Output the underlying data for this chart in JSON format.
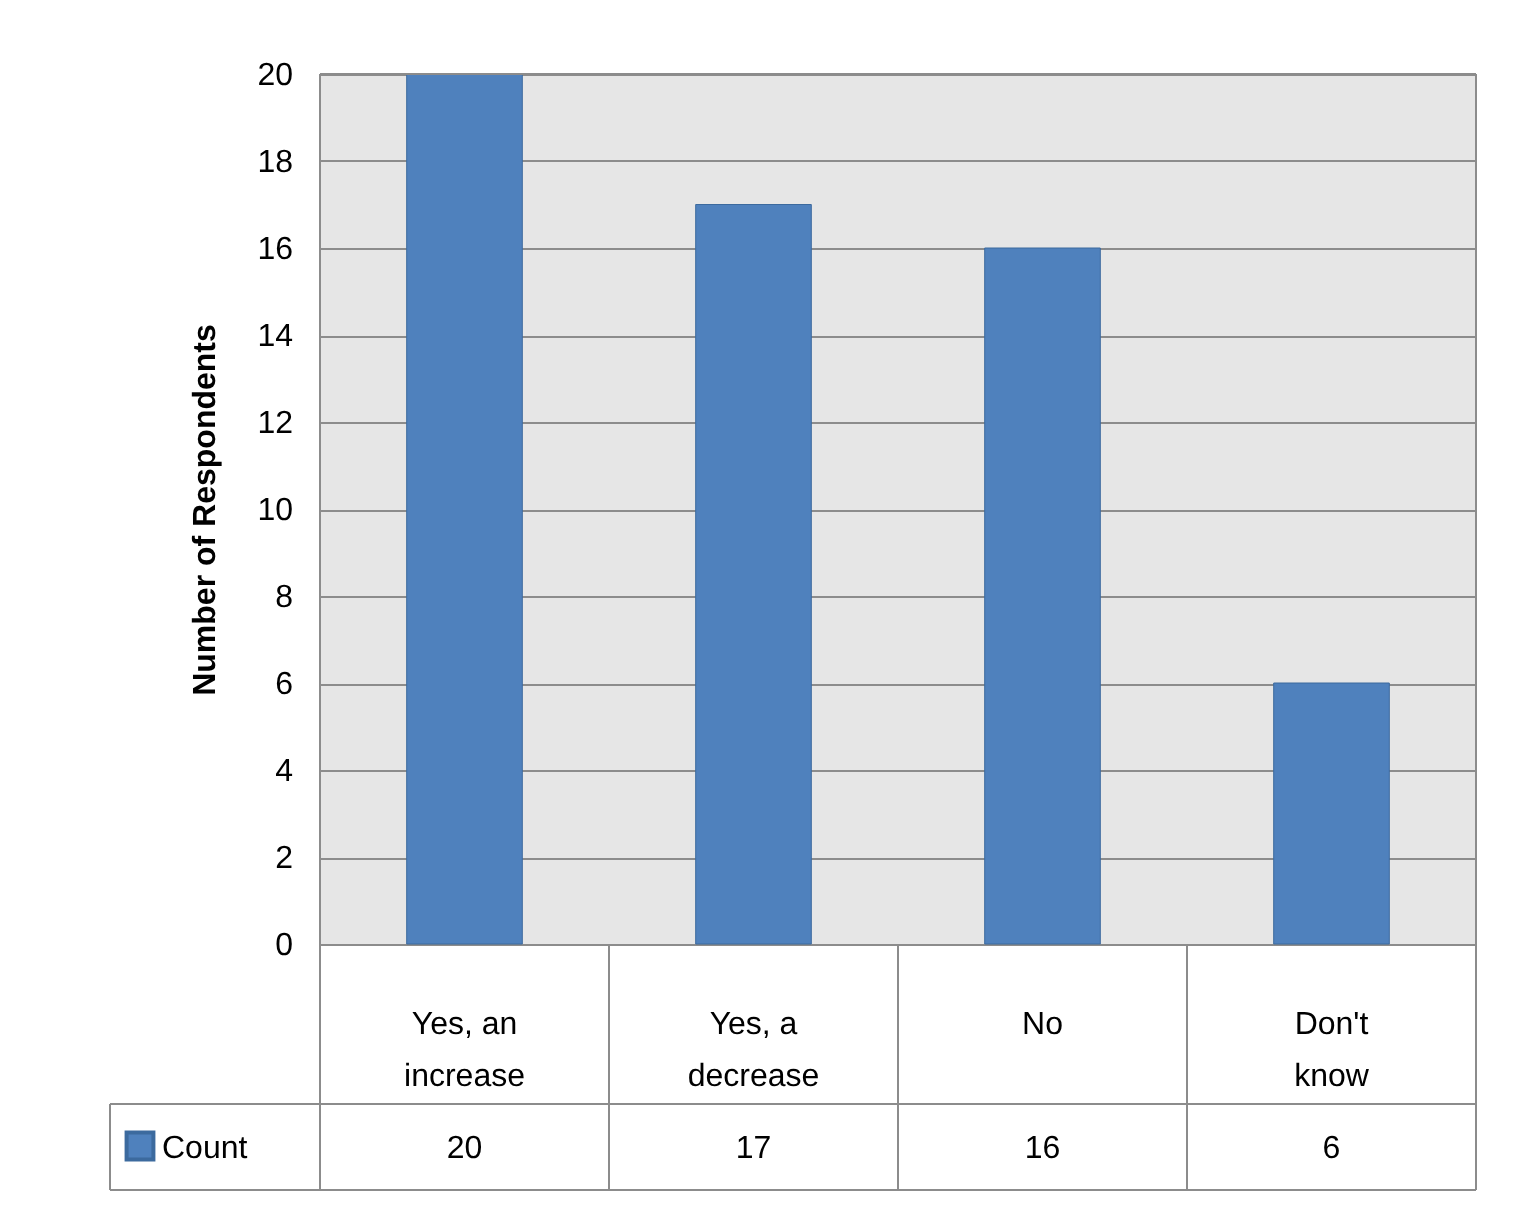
{
  "chart_data": {
    "type": "bar",
    "ylabel": "Number of Respondents",
    "categories": [
      "Yes, an increase",
      "Yes, a decrease",
      "No",
      "Don't know"
    ],
    "series": [
      {
        "name": "Count",
        "color": "#4f81bd",
        "values": [
          20,
          17,
          16,
          6
        ]
      }
    ],
    "ylim": [
      0,
      20
    ],
    "yticks": [
      0,
      2,
      4,
      6,
      8,
      10,
      12,
      14,
      16,
      18,
      20
    ],
    "grid": "y",
    "data_labels": true,
    "legend": "bottom"
  }
}
